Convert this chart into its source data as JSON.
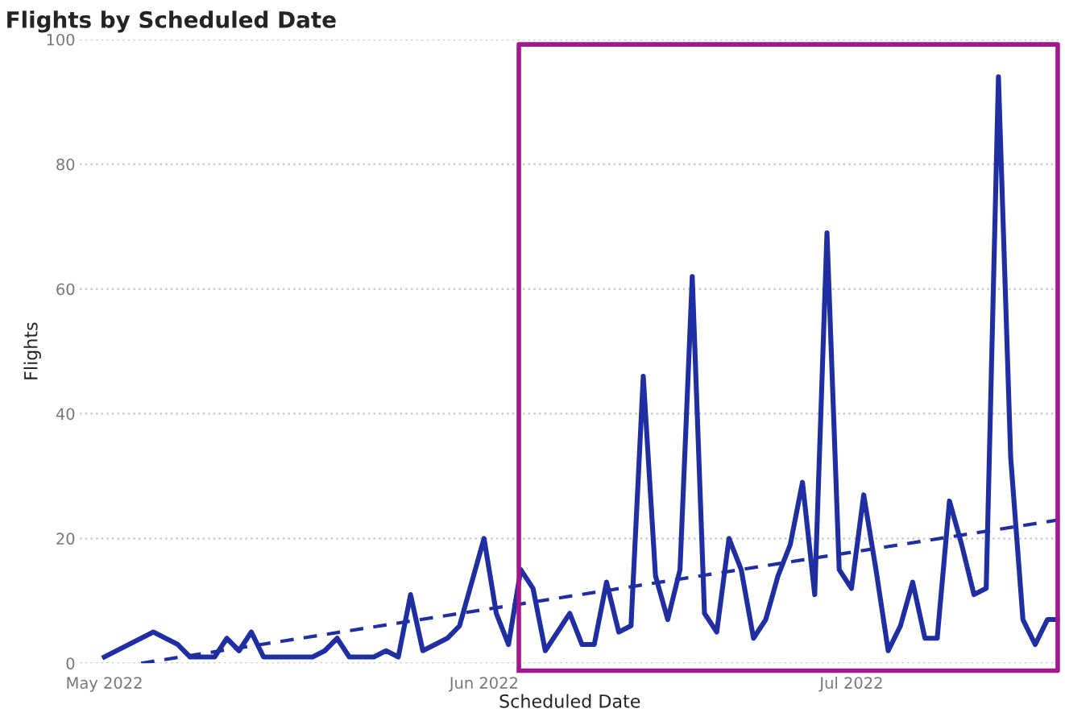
{
  "chart_data": {
    "type": "line",
    "title": "Flights by Scheduled Date",
    "xlabel": "Scheduled Date",
    "ylabel": "Flights",
    "xlim": [
      "2022-04-29",
      "2022-07-18"
    ],
    "ylim": [
      0,
      100
    ],
    "yticks": [
      0,
      20,
      40,
      60,
      80,
      100
    ],
    "xticks": [
      {
        "value": "2022-05-01",
        "label": "May 2022"
      },
      {
        "value": "2022-06-01",
        "label": "Jun 2022"
      },
      {
        "value": "2022-07-01",
        "label": "Jul 2022"
      }
    ],
    "grid": "y",
    "legend": false,
    "series": [
      {
        "color": "#1f2ea0",
        "line_style": "solid",
        "x": [
          "2022-05-01",
          "2022-05-05",
          "2022-05-07",
          "2022-05-08",
          "2022-05-10",
          "2022-05-11",
          "2022-05-12",
          "2022-05-13",
          "2022-05-14",
          "2022-05-18",
          "2022-05-19",
          "2022-05-20",
          "2022-05-21",
          "2022-05-23",
          "2022-05-24",
          "2022-05-25",
          "2022-05-26",
          "2022-05-27",
          "2022-05-29",
          "2022-05-30",
          "2022-06-01",
          "2022-06-02",
          "2022-06-03",
          "2022-06-04",
          "2022-06-05",
          "2022-06-06",
          "2022-06-08",
          "2022-06-09",
          "2022-06-10",
          "2022-06-11",
          "2022-06-12",
          "2022-06-13",
          "2022-06-14",
          "2022-06-15",
          "2022-06-16",
          "2022-06-17",
          "2022-06-18",
          "2022-06-19",
          "2022-06-20",
          "2022-06-21",
          "2022-06-22",
          "2022-06-23",
          "2022-06-24",
          "2022-06-25",
          "2022-06-26",
          "2022-06-27",
          "2022-06-28",
          "2022-06-29",
          "2022-06-30",
          "2022-07-01",
          "2022-07-02",
          "2022-07-03",
          "2022-07-04",
          "2022-07-05",
          "2022-07-06",
          "2022-07-07",
          "2022-07-08",
          "2022-07-09",
          "2022-07-10",
          "2022-07-11",
          "2022-07-12",
          "2022-07-13",
          "2022-07-14",
          "2022-07-15",
          "2022-07-16",
          "2022-07-17",
          "2022-07-18"
        ],
        "values": [
          1,
          5,
          3,
          1,
          1,
          4,
          2,
          5,
          1,
          1,
          2,
          4,
          1,
          1,
          2,
          1,
          11,
          2,
          4,
          6,
          20,
          8,
          3,
          15,
          12,
          2,
          8,
          3,
          3,
          13,
          5,
          6,
          46,
          14,
          7,
          15,
          62,
          8,
          5,
          20,
          15,
          4,
          7,
          14,
          19,
          29,
          11,
          69,
          15,
          12,
          27,
          15,
          2,
          6,
          13,
          4,
          4,
          26,
          19,
          11,
          12,
          94,
          33,
          7,
          3,
          7,
          7
        ]
      },
      {
        "color": "#1f2ea0",
        "line_style": "dashed",
        "x": [
          "2022-05-04",
          "2022-07-18"
        ],
        "values": [
          0,
          23
        ]
      }
    ]
  }
}
